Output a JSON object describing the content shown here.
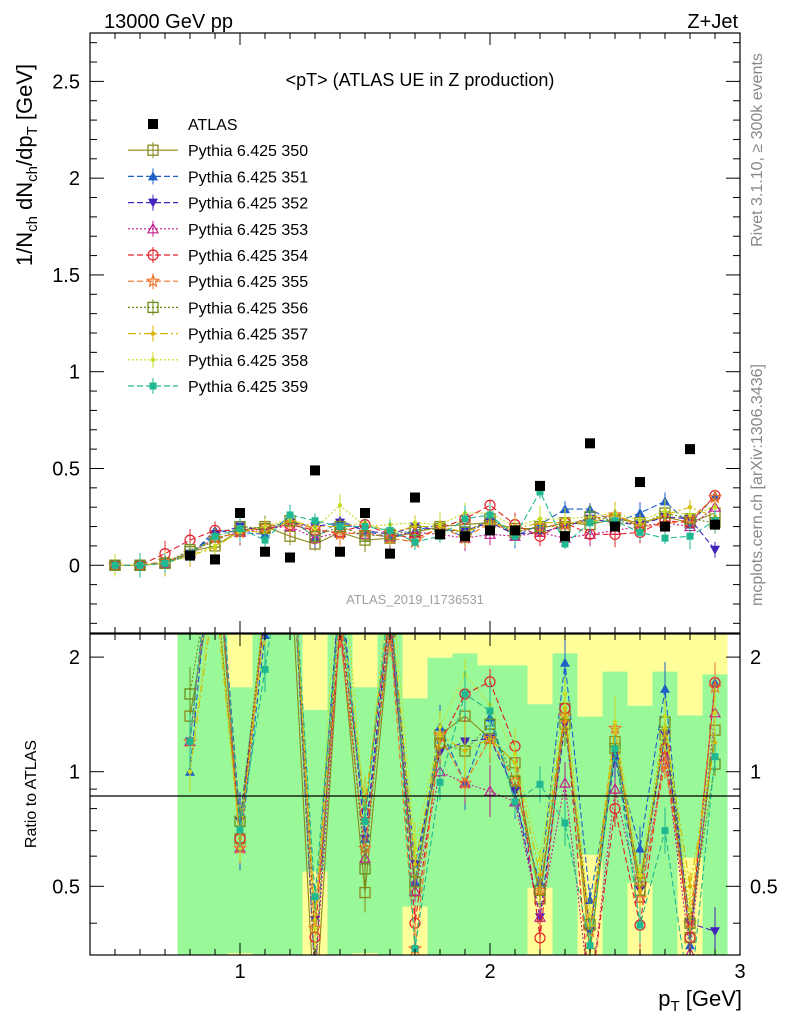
{
  "header": {
    "left": "13000 GeV pp",
    "right": "Z+Jet",
    "side_top": "Rivet 3.1.10, ≥ 300k events",
    "side_bottom": "mcplots.cern.ch [arXiv:1306.3436]",
    "watermark": "ATLAS_2019_I1736531"
  },
  "chart_data": {
    "type": "scatter",
    "title": "<pT> (ATLAS UE in Z production)",
    "xlabel": "p_T [GeV]",
    "ylabel": "1/N_ch dN_ch/dp_T [GeV]",
    "ratio_ylabel": "Ratio to ATLAS",
    "xlim": [
      0.4,
      3.0
    ],
    "ylim": [
      -0.35,
      2.75
    ],
    "ratio_ylim": [
      0.33,
      2.3
    ],
    "xticks": [
      1,
      2,
      3
    ],
    "yticks": [
      0,
      0.5,
      1,
      1.5,
      2,
      2.5
    ],
    "ratio_yticks": [
      0.5,
      1,
      2
    ],
    "x": [
      0.5,
      0.6,
      0.7,
      0.8,
      0.9,
      1.0,
      1.1,
      1.2,
      1.3,
      1.4,
      1.5,
      1.6,
      1.7,
      1.8,
      1.9,
      2.0,
      2.1,
      2.2,
      2.3,
      2.4,
      2.5,
      2.6,
      2.7,
      2.8,
      2.9
    ],
    "data": {
      "name": "ATLAS",
      "values": [
        0.0,
        0.0,
        0.0,
        0.05,
        0.03,
        0.27,
        0.07,
        0.04,
        0.49,
        0.07,
        0.27,
        0.06,
        0.35,
        0.16,
        0.15,
        0.18,
        0.18,
        0.41,
        0.15,
        0.63,
        0.2,
        0.43,
        0.2,
        0.6,
        0.21
      ]
    },
    "series": [
      {
        "name": "Pythia 6.425 350",
        "color": "#8a8a1c",
        "values": [
          0.0,
          0.0,
          0.01,
          0.07,
          0.1,
          0.18,
          0.2,
          0.15,
          0.11,
          0.17,
          0.13,
          0.14,
          0.17,
          0.2,
          0.21,
          0.22,
          0.19,
          0.19,
          0.22,
          0.21,
          0.24,
          0.22,
          0.25,
          0.22,
          0.27
        ]
      },
      {
        "name": "Pythia 6.425 351",
        "color": "#1f5fc8",
        "values": [
          0.0,
          0.0,
          0.01,
          0.05,
          0.18,
          0.17,
          0.16,
          0.25,
          0.14,
          0.23,
          0.18,
          0.14,
          0.18,
          0.21,
          0.14,
          0.25,
          0.15,
          0.21,
          0.29,
          0.29,
          0.22,
          0.27,
          0.33,
          0.21,
          0.36
        ]
      },
      {
        "name": "Pythia 6.425 352",
        "color": "#4422bb",
        "values": [
          0.0,
          0.0,
          0.01,
          0.06,
          0.16,
          0.2,
          0.18,
          0.22,
          0.2,
          0.22,
          0.18,
          0.16,
          0.2,
          0.18,
          0.18,
          0.22,
          0.16,
          0.17,
          0.2,
          0.24,
          0.22,
          0.21,
          0.25,
          0.24,
          0.08
        ]
      },
      {
        "name": "Pythia 6.425 353",
        "color": "#c02090",
        "values": [
          0.0,
          0.0,
          0.01,
          0.06,
          0.14,
          0.17,
          0.19,
          0.2,
          0.14,
          0.17,
          0.16,
          0.15,
          0.17,
          0.16,
          0.14,
          0.16,
          0.15,
          0.17,
          0.14,
          0.16,
          0.18,
          0.2,
          0.22,
          0.2,
          0.3
        ]
      },
      {
        "name": "Pythia 6.425 354",
        "color": "#e0202a",
        "values": [
          0.0,
          0.0,
          0.06,
          0.13,
          0.18,
          0.18,
          0.19,
          0.21,
          0.18,
          0.17,
          0.21,
          0.16,
          0.14,
          0.19,
          0.24,
          0.31,
          0.21,
          0.15,
          0.22,
          0.16,
          0.16,
          0.17,
          0.23,
          0.22,
          0.36
        ]
      },
      {
        "name": "Pythia 6.425 355",
        "color": "#f07020",
        "values": [
          0.0,
          0.0,
          0.02,
          0.06,
          0.14,
          0.17,
          0.2,
          0.22,
          0.19,
          0.16,
          0.17,
          0.14,
          0.12,
          0.2,
          0.14,
          0.22,
          0.17,
          0.2,
          0.21,
          0.24,
          0.26,
          0.2,
          0.21,
          0.24,
          0.35
        ]
      },
      {
        "name": "Pythia 6.425 356",
        "color": "#6e8b1c",
        "values": [
          0.0,
          0.0,
          0.01,
          0.08,
          0.12,
          0.2,
          0.19,
          0.23,
          0.15,
          0.2,
          0.15,
          0.16,
          0.18,
          0.19,
          0.17,
          0.24,
          0.17,
          0.2,
          0.2,
          0.25,
          0.23,
          0.21,
          0.27,
          0.24,
          0.22
        ]
      },
      {
        "name": "Pythia 6.425 357",
        "color": "#d8b400",
        "values": [
          0.0,
          0.0,
          0.01,
          0.05,
          0.09,
          0.18,
          0.17,
          0.23,
          0.2,
          0.2,
          0.22,
          0.17,
          0.2,
          0.2,
          0.17,
          0.22,
          0.19,
          0.22,
          0.22,
          0.22,
          0.26,
          0.21,
          0.26,
          0.3,
          0.25
        ]
      },
      {
        "name": "Pythia 6.425 358",
        "color": "#c8dc20",
        "values": [
          0.0,
          0.0,
          0.01,
          0.05,
          0.1,
          0.17,
          0.2,
          0.24,
          0.19,
          0.31,
          0.2,
          0.21,
          0.22,
          0.21,
          0.27,
          0.27,
          0.2,
          0.24,
          0.24,
          0.25,
          0.27,
          0.23,
          0.28,
          0.26,
          0.3
        ]
      },
      {
        "name": "Pythia 6.425 359",
        "color": "#20b890",
        "values": [
          0.0,
          0.0,
          0.01,
          0.06,
          0.15,
          0.19,
          0.13,
          0.26,
          0.23,
          0.2,
          0.2,
          0.18,
          0.12,
          0.15,
          0.24,
          0.26,
          0.15,
          0.38,
          0.11,
          0.22,
          0.23,
          0.17,
          0.14,
          0.15,
          0.23
        ]
      }
    ],
    "band_colors": {
      "inner": "#99f999",
      "outer": "#ffff99"
    }
  }
}
